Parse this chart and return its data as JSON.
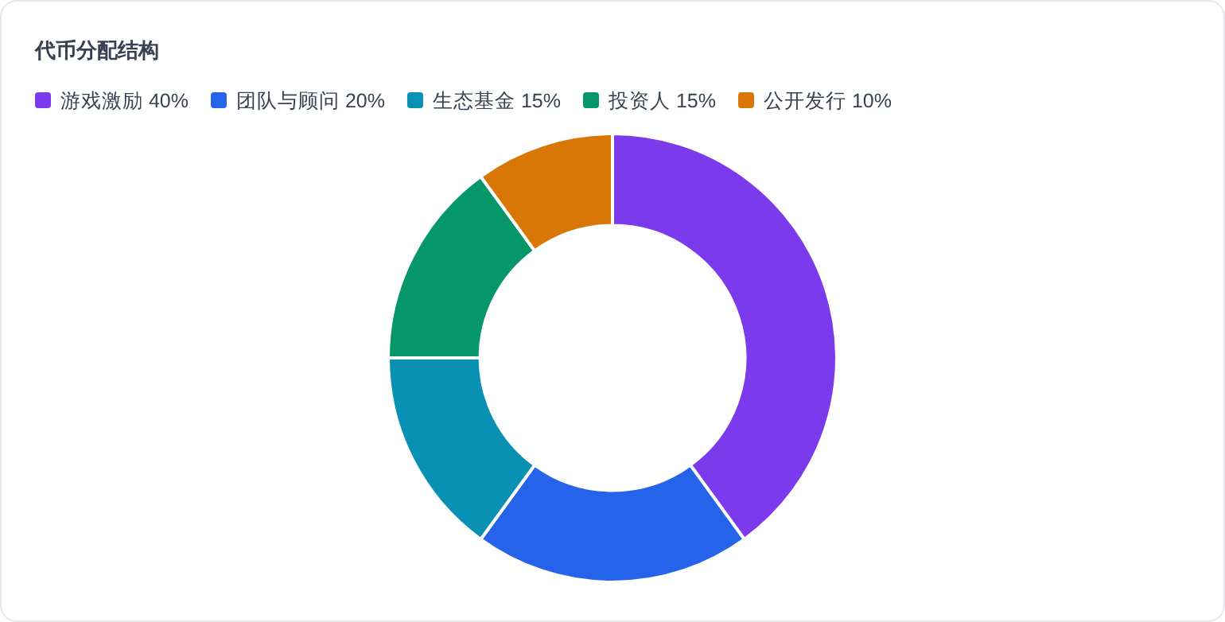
{
  "chart_data": {
    "type": "donut",
    "title": "代币分配结构",
    "legend": "top left",
    "categories": [
      "游戏激励 40%",
      "团队与顾问 20%",
      "生态基金 15%",
      "投资人 15%",
      "公开发行 10%"
    ],
    "values": [
      40,
      20,
      15,
      15,
      10
    ],
    "colors": [
      "#7c3aed",
      "#2563eb",
      "#0891b2",
      "#059669",
      "#d97706"
    ]
  }
}
